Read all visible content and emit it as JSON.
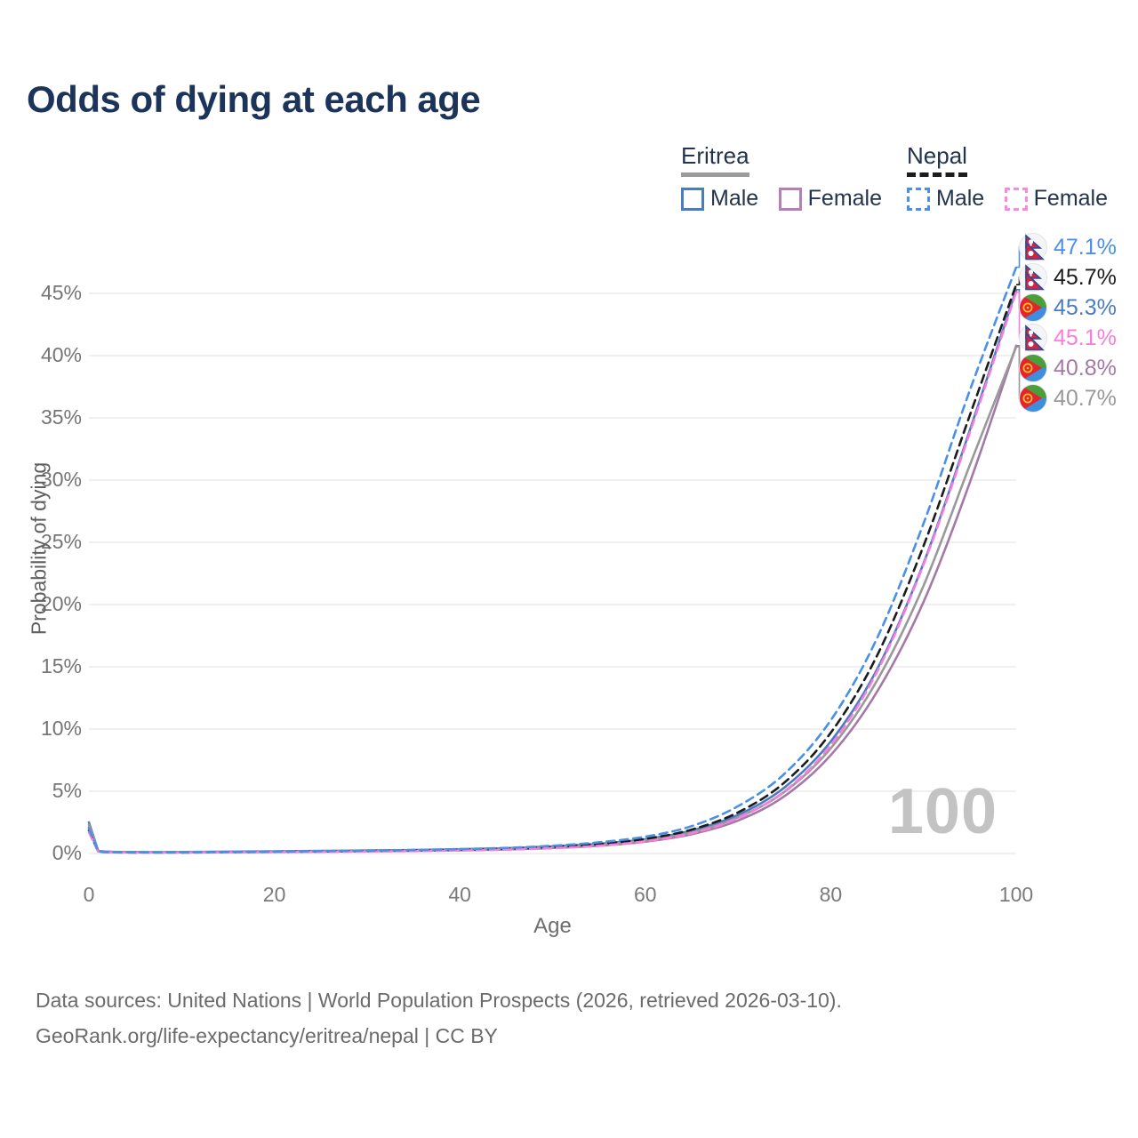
{
  "title": "Odds of dying at each age",
  "legend": {
    "groups": [
      {
        "label": "Eritrea",
        "line_color": "#9b9b9b",
        "line_style": "solid",
        "items": [
          {
            "label": "Male",
            "color": "#4a7cc2",
            "style": "solid"
          },
          {
            "label": "Female",
            "color": "#b580b5",
            "style": "solid"
          }
        ]
      },
      {
        "label": "Nepal",
        "line_color": "#1c1c1c",
        "line_style": "dashed",
        "items": [
          {
            "label": "Male",
            "color": "#4a8fe8",
            "style": "dashed"
          },
          {
            "label": "Female",
            "color": "#f98ae2",
            "style": "dashed"
          }
        ]
      }
    ]
  },
  "watermark": "100",
  "footer": {
    "line1": "Data sources: United Nations | World Population Prospects (2026, retrieved 2026-03-10).",
    "line2": "GeoRank.org/life-expectancy/eritrea/nepal | CC BY"
  },
  "chart_data": {
    "type": "line",
    "title": "Odds of dying at each age",
    "xlabel": "Age",
    "ylabel": "Probability of dying",
    "xlim": [
      0,
      100
    ],
    "ylim_pct": [
      0,
      50
    ],
    "x_ticks": [
      0,
      20,
      40,
      60,
      80,
      100
    ],
    "y_ticks_pct": [
      0,
      5,
      10,
      15,
      20,
      25,
      30,
      35,
      40,
      45
    ],
    "grid": "horizontal",
    "legend_position": "top-right",
    "ages": [
      0,
      1,
      5,
      10,
      15,
      20,
      25,
      30,
      35,
      40,
      45,
      50,
      55,
      60,
      65,
      70,
      75,
      80,
      85,
      90,
      95,
      100
    ],
    "series": [
      {
        "name": "Eritrea Male",
        "country": "Eritrea",
        "sex": "Male",
        "flag": "eritrea",
        "color": "#4a7cc2",
        "dash": "solid",
        "end_label": "45.3%",
        "values_pct": [
          2.5,
          0.22,
          0.12,
          0.12,
          0.15,
          0.18,
          0.21,
          0.24,
          0.28,
          0.34,
          0.43,
          0.57,
          0.78,
          1.15,
          1.85,
          3.1,
          5.3,
          9.0,
          14.8,
          23.3,
          34.0,
          45.3
        ]
      },
      {
        "name": "Eritrea Female",
        "country": "Eritrea",
        "sex": "Female",
        "flag": "eritrea",
        "color": "#a678a8",
        "dash": "solid",
        "end_label": "40.8%",
        "values_pct": [
          2.1,
          0.19,
          0.1,
          0.09,
          0.11,
          0.13,
          0.15,
          0.18,
          0.21,
          0.26,
          0.33,
          0.44,
          0.62,
          0.95,
          1.55,
          2.65,
          4.6,
          7.9,
          13.0,
          20.2,
          29.8,
          40.8
        ]
      },
      {
        "name": "Eritrea",
        "country": "Eritrea",
        "sex": "Both",
        "flag": "eritrea",
        "color": "#999999",
        "dash": "solid",
        "end_label": "40.7%",
        "values_pct": [
          2.3,
          0.2,
          0.11,
          0.1,
          0.13,
          0.15,
          0.18,
          0.21,
          0.25,
          0.3,
          0.38,
          0.5,
          0.7,
          1.05,
          1.7,
          2.9,
          4.95,
          8.45,
          13.9,
          21.5,
          31.2,
          40.7
        ]
      },
      {
        "name": "Nepal",
        "country": "Nepal",
        "sex": "Both",
        "flag": "nepal",
        "color": "#1c1c1c",
        "dash": "dashed",
        "end_label": "45.7%",
        "values_pct": [
          1.85,
          0.15,
          0.08,
          0.08,
          0.1,
          0.13,
          0.16,
          0.2,
          0.24,
          0.3,
          0.38,
          0.52,
          0.76,
          1.17,
          1.92,
          3.3,
          5.7,
          9.7,
          15.9,
          24.7,
          35.2,
          45.7
        ]
      },
      {
        "name": "Nepal Female",
        "country": "Nepal",
        "sex": "Female",
        "flag": "nepal",
        "color": "#f97ddd",
        "dash": "dashed",
        "end_label": "45.1%",
        "values_pct": [
          1.7,
          0.14,
          0.07,
          0.07,
          0.09,
          0.11,
          0.13,
          0.16,
          0.19,
          0.24,
          0.31,
          0.43,
          0.62,
          0.98,
          1.62,
          2.85,
          5.0,
          8.7,
          14.6,
          23.2,
          33.8,
          45.1
        ]
      },
      {
        "name": "Nepal Male",
        "country": "Nepal",
        "sex": "Male",
        "flag": "nepal",
        "color": "#4a8fe8",
        "dash": "dashed",
        "end_label": "47.1%",
        "values_pct": [
          2.0,
          0.16,
          0.09,
          0.09,
          0.12,
          0.15,
          0.19,
          0.23,
          0.28,
          0.35,
          0.45,
          0.62,
          0.9,
          1.35,
          2.2,
          3.8,
          6.4,
          10.7,
          17.3,
          26.5,
          37.2,
          47.1
        ]
      }
    ]
  }
}
